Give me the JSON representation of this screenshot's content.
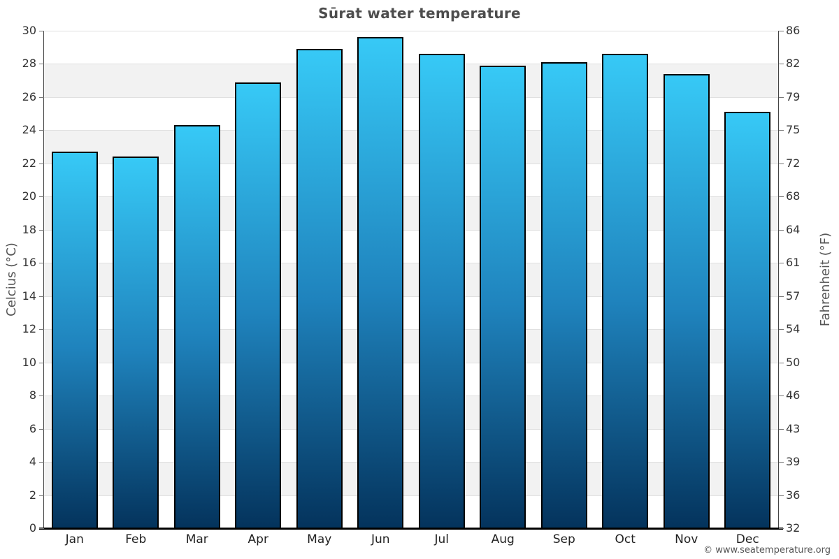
{
  "title": "Sūrat water temperature",
  "footer": "© www.seatemperature.org",
  "chart_data": {
    "type": "bar",
    "title": "Sūrat water temperature",
    "categories": [
      "Jan",
      "Feb",
      "Mar",
      "Apr",
      "May",
      "Jun",
      "Jul",
      "Aug",
      "Sep",
      "Oct",
      "Nov",
      "Dec"
    ],
    "values": [
      22.7,
      22.4,
      24.3,
      26.9,
      28.9,
      29.6,
      28.6,
      27.9,
      28.1,
      28.6,
      27.4,
      25.1
    ],
    "ylabel_left": "Celcius (°C)",
    "ylabel_right": "Fahrenheit (°F)",
    "ylim": [
      0,
      30
    ],
    "ytick_step": 2,
    "celsius_ticks": [
      0,
      2,
      4,
      6,
      8,
      10,
      12,
      14,
      16,
      18,
      20,
      22,
      24,
      26,
      28,
      30
    ],
    "fahrenheit_ticks": [
      32,
      36,
      39,
      43,
      46,
      50,
      54,
      57,
      61,
      64,
      68,
      72,
      75,
      79,
      82,
      86
    ],
    "grid": "alternating-horizontal-bands",
    "legend": "none",
    "colors": {
      "bar_gradient_top": "#37c9f6",
      "bar_gradient_mid": "#1f83bd",
      "bar_gradient_bottom": "#04335c",
      "bar_border": "#000000",
      "band_white": "#ffffff",
      "band_gray": "#f2f2f2",
      "gridline": "#e0e0e0",
      "title_color": "#4d4d4d",
      "tick_label_color": "#333333",
      "axis_label_color": "#555555",
      "footer_color": "#555555"
    }
  }
}
